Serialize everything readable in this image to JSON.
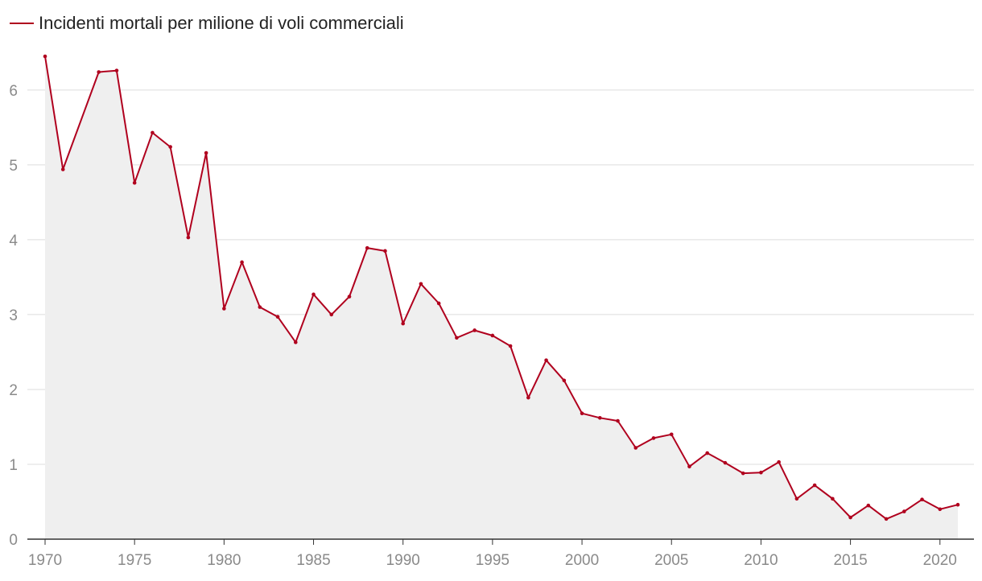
{
  "chart_data": {
    "type": "area",
    "title": "",
    "xlabel": "",
    "ylabel": "",
    "legend": {
      "label": "Incidenti mortali per milione di voli commerciali",
      "position": "top-left"
    },
    "colors": {
      "line": "#b0001e",
      "area": "#efefef",
      "grid": "#dddddd",
      "tick": "#8a8a8a"
    },
    "xlim": [
      1970,
      2021
    ],
    "ylim": [
      0,
      6.45
    ],
    "x_ticks": [
      1970,
      1975,
      1980,
      1985,
      1990,
      1995,
      2000,
      2005,
      2010,
      2015,
      2020
    ],
    "x_tick_labels": [
      "1970",
      "1975",
      "1980",
      "1985",
      "1990",
      "1995",
      "2000",
      "2005",
      "2010",
      "2015",
      "2020"
    ],
    "y_ticks": [
      0,
      1,
      2,
      3,
      4,
      5,
      6
    ],
    "y_tick_labels": [
      "0",
      "1",
      "2",
      "3",
      "4",
      "5",
      "6"
    ],
    "grid": true,
    "series": [
      {
        "name": "Incidenti mortali per milione di voli commerciali",
        "x": [
          1970,
          1971,
          1973,
          1974,
          1975,
          1976,
          1977,
          1978,
          1979,
          1980,
          1981,
          1982,
          1983,
          1984,
          1985,
          1986,
          1987,
          1988,
          1989,
          1990,
          1991,
          1992,
          1993,
          1994,
          1995,
          1996,
          1997,
          1998,
          1999,
          2000,
          2001,
          2002,
          2003,
          2004,
          2005,
          2006,
          2007,
          2008,
          2009,
          2010,
          2011,
          2012,
          2013,
          2014,
          2015,
          2016,
          2017,
          2018,
          2019,
          2020,
          2021
        ],
        "values": [
          6.45,
          4.94,
          6.24,
          6.26,
          4.76,
          5.43,
          5.24,
          4.03,
          5.16,
          3.08,
          3.7,
          3.1,
          2.97,
          2.63,
          3.27,
          3.0,
          3.24,
          3.89,
          3.85,
          2.88,
          3.41,
          3.15,
          2.69,
          2.79,
          2.72,
          2.58,
          1.89,
          2.39,
          2.12,
          1.68,
          1.62,
          1.58,
          1.22,
          1.35,
          1.4,
          0.97,
          1.15,
          1.02,
          0.88,
          0.89,
          1.03,
          0.54,
          0.72,
          0.54,
          0.29,
          0.45,
          0.27,
          0.37,
          0.53,
          0.4,
          0.46
        ]
      }
    ]
  }
}
